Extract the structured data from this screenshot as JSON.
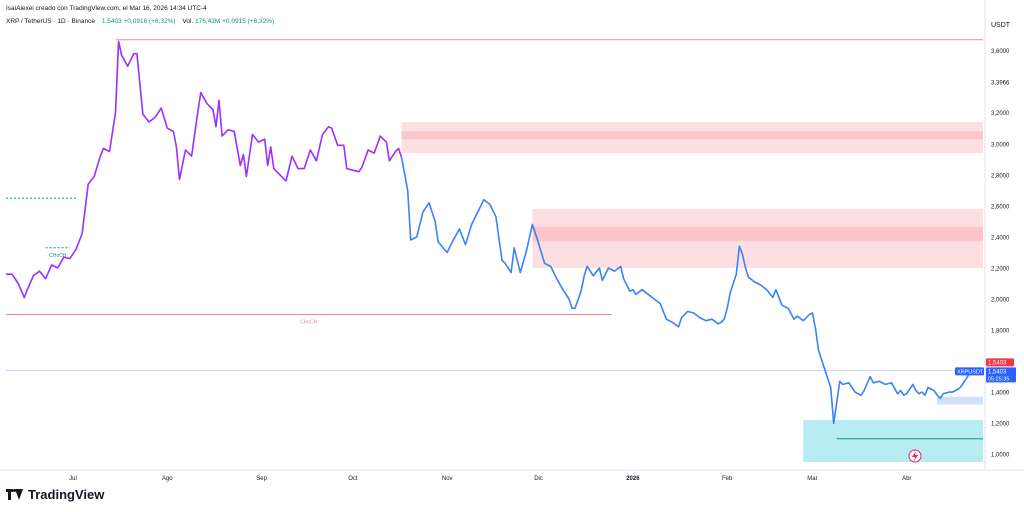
{
  "header": {
    "author_line": "IsaiAlexei creado con TradingView.com, el Mar 16, 2026 14:34 UTC-4"
  },
  "legend": {
    "symbol": "XRP / TetherUS · 1D · Binance",
    "price": "1,5403",
    "change": "+0,0916 (+6,32%)",
    "volume_label": "Vol.",
    "volume": "176,42M",
    "volume_change": "+0,0915 (+6,32%)"
  },
  "brand": {
    "logo_text": "TradingView"
  },
  "colors": {
    "price_purple": "#9b30ff",
    "price_blue": "#3b82f6",
    "supply_zone": "#fbc4c8",
    "demand_zone": "#a5e7f0",
    "resistance_line": "#f28b96",
    "support_line": "#089981",
    "last_price_badge": "#f23645",
    "symbol_badge": "#2962ff"
  },
  "chart_data": {
    "type": "line",
    "currency": "USDT",
    "ylim": [
      0.95,
      3.72
    ],
    "y_ticks": [
      "3,6000",
      "3,3966",
      "3,2000",
      "3,0000",
      "2,8000",
      "2,6000",
      "2,4000",
      "2,2000",
      "2,0000",
      "1,8000",
      "1,6000",
      "1,4000",
      "1,2000",
      "1,0000"
    ],
    "y_tick_values": [
      3.6,
      3.3966,
      3.2,
      3.0,
      2.8,
      2.6,
      2.4,
      2.2,
      2.0,
      1.8,
      1.6,
      1.4,
      1.2,
      1.0
    ],
    "x_ticks": [
      {
        "label": "Jul",
        "day": 9
      },
      {
        "label": "Ago",
        "day": 40
      },
      {
        "label": "Sep",
        "day": 71
      },
      {
        "label": "Oct",
        "day": 101
      },
      {
        "label": "Nov",
        "day": 132
      },
      {
        "label": "Dic",
        "day": 162
      },
      {
        "label": "2026",
        "day": 193
      },
      {
        "label": "Feb",
        "day": 224
      },
      {
        "label": "Mar",
        "day": 252
      },
      {
        "label": "Abr",
        "day": 283
      }
    ],
    "x_range": [
      -13,
      289
    ],
    "series": [
      {
        "color_key": "price_purple",
        "points": [
          [
            -13,
            2.16
          ],
          [
            -11,
            2.16
          ],
          [
            -9,
            2.1
          ],
          [
            -7,
            2.01
          ],
          [
            -6,
            2.06
          ],
          [
            -4,
            2.15
          ],
          [
            -2,
            2.18
          ],
          [
            0,
            2.13
          ],
          [
            2,
            2.22
          ],
          [
            4,
            2.2
          ],
          [
            6,
            2.27
          ],
          [
            8,
            2.26
          ],
          [
            10,
            2.32
          ],
          [
            12,
            2.42
          ],
          [
            14,
            2.74
          ],
          [
            16,
            2.79
          ],
          [
            18,
            2.92
          ],
          [
            19,
            2.97
          ],
          [
            21,
            2.95
          ],
          [
            23,
            3.2
          ],
          [
            24,
            3.66
          ],
          [
            25,
            3.57
          ],
          [
            27,
            3.5
          ],
          [
            29,
            3.58
          ],
          [
            30,
            3.58
          ],
          [
            32,
            3.19
          ],
          [
            34,
            3.14
          ],
          [
            36,
            3.17
          ],
          [
            38,
            3.23
          ],
          [
            40,
            3.1
          ],
          [
            42,
            3.08
          ],
          [
            43,
            2.98
          ],
          [
            44,
            2.77
          ],
          [
            46,
            2.96
          ],
          [
            48,
            2.92
          ],
          [
            50,
            3.2
          ],
          [
            51,
            3.33
          ],
          [
            53,
            3.26
          ],
          [
            55,
            3.22
          ],
          [
            56,
            3.11
          ],
          [
            57,
            3.28
          ],
          [
            58,
            3.05
          ],
          [
            60,
            3.09
          ],
          [
            62,
            3.08
          ],
          [
            64,
            2.86
          ],
          [
            65,
            2.93
          ],
          [
            66,
            2.79
          ],
          [
            68,
            3.06
          ],
          [
            70,
            3.01
          ],
          [
            72,
            3.03
          ],
          [
            73,
            2.86
          ],
          [
            74,
            2.98
          ],
          [
            75,
            2.84
          ],
          [
            77,
            2.8
          ],
          [
            79,
            2.76
          ],
          [
            81,
            2.92
          ],
          [
            83,
            2.84
          ],
          [
            85,
            2.84
          ],
          [
            87,
            2.96
          ],
          [
            89,
            2.89
          ],
          [
            91,
            3.06
          ],
          [
            93,
            3.11
          ],
          [
            94,
            3.1
          ],
          [
            96,
            2.99
          ],
          [
            98,
            2.99
          ],
          [
            99,
            2.84
          ],
          [
            101,
            2.83
          ],
          [
            103,
            2.82
          ],
          [
            104,
            2.85
          ],
          [
            106,
            2.96
          ],
          [
            108,
            2.94
          ],
          [
            110,
            3.05
          ],
          [
            112,
            3.01
          ],
          [
            113,
            2.89
          ],
          [
            115,
            2.95
          ],
          [
            116,
            2.97
          ],
          [
            117,
            2.91
          ]
        ]
      },
      {
        "color_key": "price_blue",
        "points": [
          [
            117,
            2.91
          ],
          [
            119,
            2.7
          ],
          [
            120,
            2.38
          ],
          [
            122,
            2.4
          ],
          [
            124,
            2.56
          ],
          [
            126,
            2.62
          ],
          [
            128,
            2.5
          ],
          [
            129,
            2.37
          ],
          [
            131,
            2.32
          ],
          [
            132,
            2.3
          ],
          [
            134,
            2.38
          ],
          [
            136,
            2.45
          ],
          [
            138,
            2.35
          ],
          [
            140,
            2.48
          ],
          [
            142,
            2.56
          ],
          [
            144,
            2.64
          ],
          [
            146,
            2.61
          ],
          [
            148,
            2.53
          ],
          [
            150,
            2.25
          ],
          [
            151,
            2.23
          ],
          [
            153,
            2.17
          ],
          [
            154,
            2.33
          ],
          [
            156,
            2.17
          ],
          [
            158,
            2.31
          ],
          [
            160,
            2.48
          ],
          [
            162,
            2.36
          ],
          [
            164,
            2.23
          ],
          [
            166,
            2.21
          ],
          [
            168,
            2.13
          ],
          [
            170,
            2.06
          ],
          [
            172,
            2.0
          ],
          [
            173,
            1.94
          ],
          [
            174,
            1.94
          ],
          [
            176,
            2.05
          ],
          [
            177,
            2.15
          ],
          [
            178,
            2.21
          ],
          [
            180,
            2.15
          ],
          [
            182,
            2.2
          ],
          [
            183,
            2.12
          ],
          [
            185,
            2.2
          ],
          [
            187,
            2.18
          ],
          [
            189,
            2.21
          ],
          [
            190,
            2.13
          ],
          [
            192,
            2.05
          ],
          [
            193,
            2.06
          ],
          [
            194,
            2.03
          ],
          [
            196,
            2.06
          ],
          [
            198,
            2.03
          ],
          [
            200,
            2.0
          ],
          [
            202,
            1.97
          ],
          [
            204,
            1.87
          ],
          [
            206,
            1.85
          ],
          [
            208,
            1.82
          ],
          [
            209,
            1.88
          ],
          [
            211,
            1.92
          ],
          [
            213,
            1.91
          ],
          [
            215,
            1.88
          ],
          [
            217,
            1.86
          ],
          [
            219,
            1.87
          ],
          [
            221,
            1.84
          ],
          [
            222,
            1.85
          ],
          [
            223,
            1.87
          ],
          [
            224,
            1.94
          ],
          [
            225,
            2.04
          ],
          [
            227,
            2.16
          ],
          [
            228,
            2.34
          ],
          [
            229,
            2.29
          ],
          [
            230,
            2.2
          ],
          [
            231,
            2.14
          ],
          [
            233,
            2.11
          ],
          [
            235,
            2.09
          ],
          [
            237,
            2.06
          ],
          [
            239,
            2.01
          ],
          [
            240,
            2.06
          ],
          [
            242,
            1.96
          ],
          [
            244,
            1.94
          ],
          [
            246,
            1.87
          ],
          [
            247,
            1.89
          ],
          [
            249,
            1.86
          ],
          [
            251,
            1.9
          ],
          [
            252,
            1.91
          ],
          [
            253,
            1.81
          ],
          [
            254,
            1.67
          ],
          [
            255,
            1.61
          ],
          [
            256,
            1.55
          ],
          [
            258,
            1.43
          ],
          [
            259,
            1.2
          ],
          [
            261,
            1.47
          ],
          [
            262,
            1.45
          ],
          [
            264,
            1.46
          ],
          [
            266,
            1.4
          ],
          [
            268,
            1.38
          ],
          [
            269,
            1.41
          ],
          [
            271,
            1.5
          ],
          [
            272,
            1.46
          ],
          [
            274,
            1.47
          ],
          [
            276,
            1.45
          ],
          [
            278,
            1.46
          ],
          [
            280,
            1.39
          ],
          [
            281,
            1.41
          ],
          [
            282,
            1.38
          ],
          [
            283,
            1.39
          ],
          [
            285,
            1.45
          ],
          [
            286,
            1.41
          ],
          [
            287,
            1.39
          ],
          [
            288,
            1.4
          ],
          [
            289,
            1.38
          ],
          [
            290,
            1.43
          ],
          [
            292,
            1.41
          ],
          [
            293,
            1.38
          ],
          [
            294,
            1.36
          ],
          [
            295,
            1.39
          ],
          [
            297,
            1.4
          ],
          [
            298,
            1.4
          ],
          [
            300,
            1.42
          ],
          [
            301,
            1.44
          ],
          [
            303,
            1.5
          ],
          [
            304,
            1.54
          ]
        ]
      }
    ],
    "zones": [
      {
        "kind": "supply",
        "x": [
          117,
          335
        ],
        "y": [
          2.94,
          3.14
        ]
      },
      {
        "kind": "supply",
        "x": [
          160,
          335
        ],
        "y": [
          2.2,
          2.58
        ]
      },
      {
        "kind": "demand",
        "x": [
          249,
          322
        ],
        "y": [
          0.95,
          1.22
        ]
      },
      {
        "kind": "demand-small",
        "x": [
          293,
          335
        ],
        "y": [
          1.32,
          1.37
        ]
      }
    ],
    "levels": [
      {
        "label": "CHoCH",
        "price": 1.9,
        "x": [
          -13,
          186
        ],
        "color_key": "price_line_red"
      },
      {
        "label": "CHoCH",
        "price": 2.33,
        "x": [
          0,
          8
        ],
        "color_key": "support_line"
      },
      {
        "label": "",
        "price": 2.65,
        "x": [
          -13,
          10
        ],
        "color_key": "support_line"
      },
      {
        "label": "",
        "price": 3.67,
        "x": [
          23,
          335
        ],
        "color_key": "price_line_red"
      },
      {
        "label": "",
        "price": 1.1,
        "x": [
          260,
          335
        ],
        "color_key": "support_line"
      }
    ],
    "last_price": "1,5403",
    "last_price_value": 1.5403,
    "symbol_badge": "XRPUSDT",
    "symbol_badge_price": "1,5403",
    "countdown": "05:25:35"
  }
}
